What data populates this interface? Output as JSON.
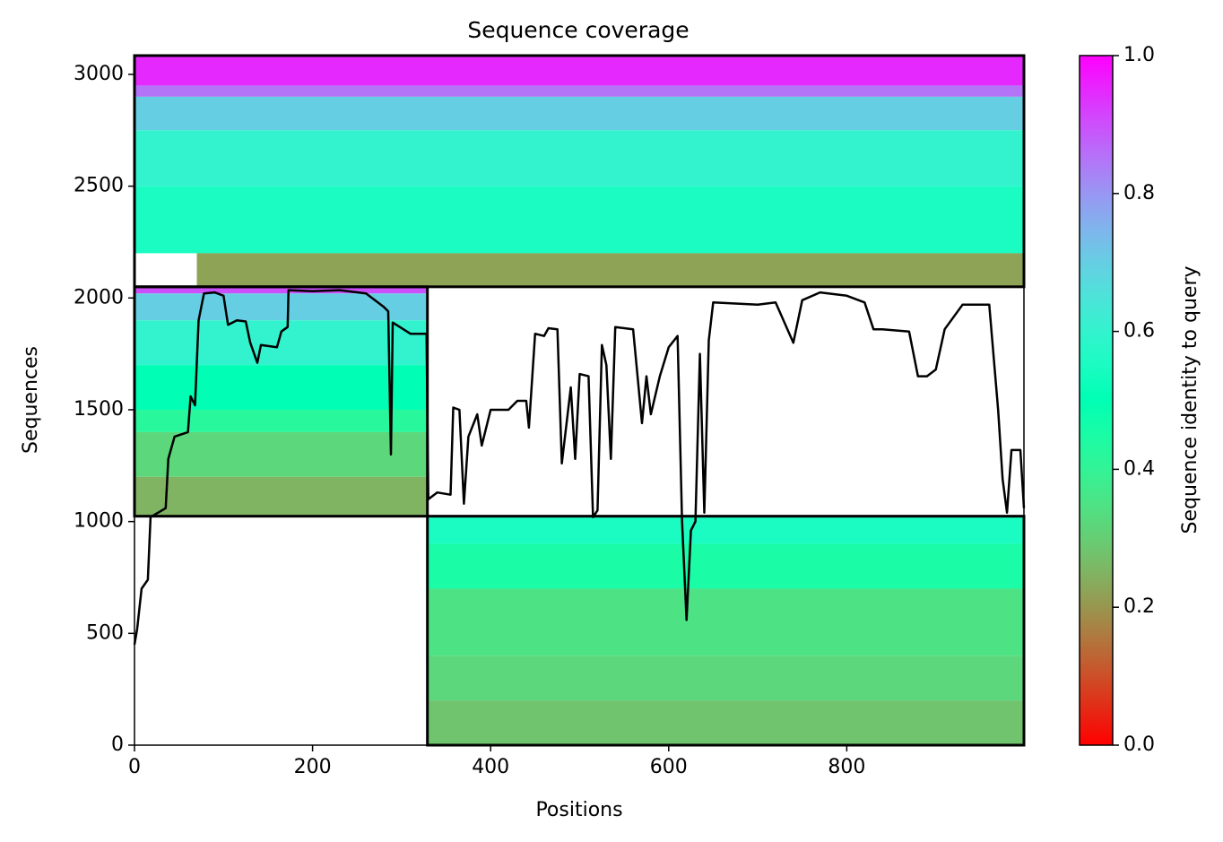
{
  "chart_data": {
    "type": "coverage",
    "title": "Sequence coverage",
    "xlabel": "Positions",
    "ylabel": "Sequences",
    "colorbar_label": "Sequence identity to query",
    "cmap": "rainbow_r",
    "xlim": [
      0,
      999
    ],
    "ylim": [
      0,
      3084
    ],
    "xticks": [
      0,
      200,
      400,
      600,
      800
    ],
    "yticks": [
      0,
      500,
      1000,
      1500,
      2000,
      2500,
      3000
    ],
    "clim": [
      0,
      1
    ],
    "cticks": [
      0.0,
      0.2,
      0.4,
      0.6,
      0.8,
      1.0
    ],
    "chains": [
      {
        "x": [
          0,
          999
        ],
        "y": [
          2050,
          3084
        ]
      },
      {
        "x": [
          0,
          329
        ],
        "y": [
          1024,
          2050
        ]
      },
      {
        "x": [
          329,
          999
        ],
        "y": [
          0,
          1024
        ]
      }
    ],
    "cells": [
      {
        "x0": 0,
        "x1": 999,
        "y0": 2950,
        "y1": 3084,
        "identity": 0.95
      },
      {
        "x0": 0,
        "x1": 999,
        "y0": 2900,
        "y1": 2950,
        "identity": 0.85
      },
      {
        "x0": 0,
        "x1": 999,
        "y0": 2750,
        "y1": 2900,
        "identity": 0.7
      },
      {
        "x0": 0,
        "x1": 999,
        "y0": 2500,
        "y1": 2750,
        "identity": 0.6
      },
      {
        "x0": 0,
        "x1": 999,
        "y0": 2200,
        "y1": 2500,
        "identity": 0.55
      },
      {
        "x0": 70,
        "x1": 999,
        "y0": 2050,
        "y1": 2200,
        "identity": 0.22
      },
      {
        "x0": 0,
        "x1": 329,
        "y0": 2020,
        "y1": 2050,
        "identity": 0.9
      },
      {
        "x0": 0,
        "x1": 329,
        "y0": 1900,
        "y1": 2020,
        "identity": 0.7
      },
      {
        "x0": 0,
        "x1": 329,
        "y0": 1700,
        "y1": 1900,
        "identity": 0.6
      },
      {
        "x0": 0,
        "x1": 329,
        "y0": 1500,
        "y1": 1700,
        "identity": 0.5
      },
      {
        "x0": 0,
        "x1": 329,
        "y0": 1400,
        "y1": 1500,
        "identity": 0.42
      },
      {
        "x0": 0,
        "x1": 329,
        "y0": 1200,
        "y1": 1400,
        "identity": 0.32
      },
      {
        "x0": 0,
        "x1": 329,
        "y0": 1024,
        "y1": 1200,
        "identity": 0.25
      },
      {
        "x0": 329,
        "x1": 999,
        "y0": 900,
        "y1": 1024,
        "identity": 0.55
      },
      {
        "x0": 329,
        "x1": 999,
        "y0": 700,
        "y1": 900,
        "identity": 0.45
      },
      {
        "x0": 329,
        "x1": 999,
        "y0": 400,
        "y1": 700,
        "identity": 0.35
      },
      {
        "x0": 329,
        "x1": 999,
        "y0": 200,
        "y1": 400,
        "identity": 0.32
      },
      {
        "x0": 329,
        "x1": 999,
        "y0": 0,
        "y1": 200,
        "identity": 0.28
      }
    ],
    "coverage": {
      "color": "#000000",
      "x": [
        0,
        3,
        8,
        15,
        18,
        35,
        38,
        45,
        60,
        63,
        68,
        72,
        78,
        90,
        100,
        105,
        115,
        125,
        130,
        138,
        142,
        160,
        165,
        172,
        173,
        200,
        230,
        260,
        280,
        285,
        288,
        290,
        310,
        328,
        330,
        340,
        355,
        358,
        365,
        370,
        375,
        385,
        390,
        400,
        420,
        430,
        440,
        443,
        450,
        460,
        465,
        475,
        480,
        490,
        495,
        500,
        510,
        515,
        520,
        525,
        530,
        535,
        540,
        560,
        570,
        575,
        580,
        590,
        600,
        610,
        615,
        620,
        625,
        630,
        635,
        640,
        645,
        650,
        700,
        720,
        740,
        750,
        770,
        800,
        820,
        830,
        840,
        870,
        880,
        890,
        900,
        910,
        930,
        960,
        970,
        975,
        980,
        985,
        995,
        999
      ],
      "values": [
        450,
        520,
        700,
        740,
        1020,
        1060,
        1280,
        1380,
        1400,
        1560,
        1520,
        1900,
        2020,
        2025,
        2010,
        1880,
        1900,
        1895,
        1800,
        1710,
        1790,
        1780,
        1850,
        1870,
        2035,
        2030,
        2035,
        2020,
        1960,
        1940,
        1300,
        1890,
        1840,
        1840,
        1100,
        1130,
        1120,
        1510,
        1500,
        1080,
        1380,
        1480,
        1340,
        1500,
        1500,
        1540,
        1540,
        1420,
        1840,
        1830,
        1865,
        1860,
        1260,
        1600,
        1280,
        1660,
        1650,
        1020,
        1050,
        1790,
        1700,
        1280,
        1870,
        1860,
        1440,
        1650,
        1480,
        1650,
        1780,
        1830,
        1000,
        560,
        960,
        1000,
        1750,
        1040,
        1810,
        1980,
        1970,
        1980,
        1800,
        1990,
        2025,
        2010,
        1980,
        1860,
        1860,
        1850,
        1650,
        1650,
        1680,
        1860,
        1970,
        1970,
        1500,
        1190,
        1040,
        1320,
        1320,
        1060
      ]
    }
  }
}
